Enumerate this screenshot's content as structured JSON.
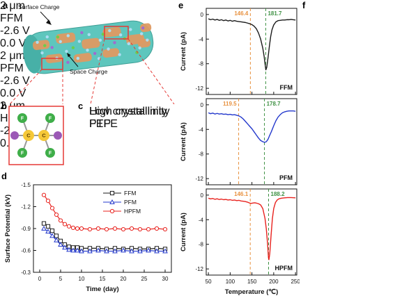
{
  "panels": {
    "a": {
      "label": "a",
      "surface_charge": "Surface Charge",
      "space_charge": "Space Charge"
    },
    "b": {
      "label": "b",
      "c_label": "C",
      "f_label": "F"
    },
    "c": {
      "label": "c",
      "top_text": "Low crystallinity FEP",
      "bottom_text": "High crystallinity PTFE"
    },
    "d": {
      "label": "d"
    },
    "e": {
      "label": "e"
    },
    "f": {
      "label": "f",
      "images": [
        {
          "name": "FFM",
          "scale": "2 μm",
          "cbar_top": "-2.6 V",
          "cbar_bottom": "0.0 V"
        },
        {
          "name": "PFM",
          "scale": "2 μm",
          "cbar_top": "-2.6 V",
          "cbar_bottom": "0.0 V"
        },
        {
          "name": "HPFM",
          "scale": "2 μm",
          "cbar_top": "-2.6 V",
          "cbar_bottom": "0.0 V"
        }
      ]
    }
  },
  "chart_data": [
    {
      "type": "line",
      "panel": "d",
      "xlabel": "Time (day)",
      "ylabel": "Surface Potential (kV)",
      "xlim": [
        -1.5,
        31.5
      ],
      "ylim_top_to_bottom": [
        -1.5,
        -0.3
      ],
      "xticks": [
        0,
        5,
        10,
        15,
        20,
        25,
        30
      ],
      "yticks": [
        -1.5,
        -1.2,
        -0.9,
        -0.6,
        -0.3
      ],
      "legend_position": "top-right",
      "grid": false,
      "series": [
        {
          "name": "FFM",
          "color": "#1a1a1a",
          "marker": "square",
          "points": [
            [
              1,
              -0.97
            ],
            [
              2,
              -0.93
            ],
            [
              3,
              -0.87
            ],
            [
              4,
              -0.8
            ],
            [
              5,
              -0.73
            ],
            [
              6,
              -0.68
            ],
            [
              7,
              -0.65
            ],
            [
              8,
              -0.64
            ],
            [
              9,
              -0.64
            ],
            [
              10,
              -0.63
            ],
            [
              12,
              -0.63
            ],
            [
              14,
              -0.63
            ],
            [
              16,
              -0.62
            ],
            [
              18,
              -0.63
            ],
            [
              20,
              -0.62
            ],
            [
              22,
              -0.63
            ],
            [
              24,
              -0.62
            ],
            [
              26,
              -0.62
            ],
            [
              28,
              -0.63
            ],
            [
              30,
              -0.62
            ]
          ]
        },
        {
          "name": "PFM",
          "color": "#2338cc",
          "marker": "triangle",
          "points": [
            [
              1,
              -0.9
            ],
            [
              2,
              -0.86
            ],
            [
              3,
              -0.8
            ],
            [
              4,
              -0.74
            ],
            [
              5,
              -0.68
            ],
            [
              6,
              -0.64
            ],
            [
              7,
              -0.61
            ],
            [
              8,
              -0.6
            ],
            [
              9,
              -0.6
            ],
            [
              10,
              -0.59
            ],
            [
              12,
              -0.59
            ],
            [
              14,
              -0.6
            ],
            [
              16,
              -0.59
            ],
            [
              18,
              -0.59
            ],
            [
              20,
              -0.6
            ],
            [
              22,
              -0.59
            ],
            [
              24,
              -0.59
            ],
            [
              26,
              -0.6
            ],
            [
              28,
              -0.59
            ],
            [
              30,
              -0.59
            ]
          ]
        },
        {
          "name": "HPFM",
          "color": "#e8211d",
          "marker": "circle",
          "points": [
            [
              1,
              -1.36
            ],
            [
              2,
              -1.28
            ],
            [
              3,
              -1.18
            ],
            [
              4,
              -1.09
            ],
            [
              5,
              -1.01
            ],
            [
              6,
              -0.96
            ],
            [
              7,
              -0.93
            ],
            [
              8,
              -0.91
            ],
            [
              9,
              -0.9
            ],
            [
              10,
              -0.9
            ],
            [
              12,
              -0.89
            ],
            [
              14,
              -0.9
            ],
            [
              16,
              -0.89
            ],
            [
              18,
              -0.9
            ],
            [
              20,
              -0.89
            ],
            [
              22,
              -0.9
            ],
            [
              24,
              -0.89
            ],
            [
              26,
              -0.89
            ],
            [
              28,
              -0.9
            ],
            [
              30,
              -0.89
            ]
          ]
        }
      ]
    },
    {
      "type": "line",
      "panel": "e-top",
      "sample": "FFM",
      "color": "#1a1a1a",
      "xlabel": "",
      "ylabel": "Current (pA)",
      "xlim": [
        45,
        253
      ],
      "ylim": [
        0,
        -12
      ],
      "xticks": [
        50,
        100,
        150,
        200,
        250
      ],
      "yticks": [
        0,
        -4,
        -8,
        -12
      ],
      "vlines": [
        {
          "x": 146.4,
          "label": "146.4",
          "color": "#E8913F"
        },
        {
          "x": 181.7,
          "label": "181.7",
          "color": "#3F9144"
        }
      ],
      "points": [
        [
          50,
          -0.7
        ],
        [
          55,
          -0.85
        ],
        [
          60,
          -0.75
        ],
        [
          65,
          -0.9
        ],
        [
          70,
          -0.8
        ],
        [
          75,
          -0.95
        ],
        [
          80,
          -0.85
        ],
        [
          85,
          -1.0
        ],
        [
          90,
          -0.9
        ],
        [
          95,
          -1.05
        ],
        [
          100,
          -0.95
        ],
        [
          105,
          -1.1
        ],
        [
          110,
          -1.0
        ],
        [
          115,
          -1.1
        ],
        [
          120,
          -1.15
        ],
        [
          125,
          -1.2
        ],
        [
          130,
          -1.25
        ],
        [
          135,
          -1.3
        ],
        [
          140,
          -1.4
        ],
        [
          145,
          -1.5
        ],
        [
          150,
          -1.65
        ],
        [
          155,
          -1.9
        ],
        [
          160,
          -2.3
        ],
        [
          165,
          -3.0
        ],
        [
          170,
          -4.0
        ],
        [
          175,
          -5.5
        ],
        [
          178,
          -6.8
        ],
        [
          180,
          -8.0
        ],
        [
          182,
          -9.0
        ],
        [
          184,
          -8.6
        ],
        [
          187,
          -7.0
        ],
        [
          190,
          -5.2
        ],
        [
          193,
          -3.6
        ],
        [
          196,
          -2.5
        ],
        [
          200,
          -1.7
        ],
        [
          205,
          -1.2
        ],
        [
          210,
          -1.0
        ],
        [
          215,
          -0.95
        ],
        [
          220,
          -0.9
        ],
        [
          225,
          -0.9
        ],
        [
          230,
          -0.85
        ],
        [
          235,
          -0.85
        ],
        [
          240,
          -0.8
        ],
        [
          245,
          -0.85
        ],
        [
          250,
          -0.9
        ]
      ]
    },
    {
      "type": "line",
      "panel": "e-middle",
      "sample": "PFM",
      "color": "#2338cc",
      "xlabel": "",
      "ylabel": "Current (pA)",
      "xlim": [
        45,
        253
      ],
      "ylim": [
        0,
        -12
      ],
      "xticks": [
        50,
        100,
        150,
        200,
        250
      ],
      "yticks": [
        0,
        -4,
        -8,
        -12
      ],
      "vlines": [
        {
          "x": 119.5,
          "label": "119.5",
          "color": "#E8913F"
        },
        {
          "x": 178.7,
          "label": "178.7",
          "color": "#3F9144"
        }
      ],
      "points": [
        [
          50,
          -1.3
        ],
        [
          55,
          -1.45
        ],
        [
          60,
          -1.35
        ],
        [
          65,
          -1.5
        ],
        [
          70,
          -1.4
        ],
        [
          75,
          -1.5
        ],
        [
          80,
          -1.45
        ],
        [
          85,
          -1.55
        ],
        [
          90,
          -1.5
        ],
        [
          95,
          -1.6
        ],
        [
          100,
          -1.55
        ],
        [
          105,
          -1.65
        ],
        [
          110,
          -1.6
        ],
        [
          115,
          -1.7
        ],
        [
          120,
          -1.8
        ],
        [
          125,
          -2.0
        ],
        [
          130,
          -2.3
        ],
        [
          135,
          -2.7
        ],
        [
          140,
          -3.1
        ],
        [
          145,
          -3.5
        ],
        [
          150,
          -3.9
        ],
        [
          155,
          -4.4
        ],
        [
          160,
          -4.9
        ],
        [
          165,
          -5.4
        ],
        [
          170,
          -5.8
        ],
        [
          175,
          -6.0
        ],
        [
          179,
          -6.1
        ],
        [
          183,
          -6.0
        ],
        [
          187,
          -5.6
        ],
        [
          190,
          -5.1
        ],
        [
          195,
          -4.3
        ],
        [
          200,
          -3.4
        ],
        [
          205,
          -2.6
        ],
        [
          210,
          -2.0
        ],
        [
          215,
          -1.6
        ],
        [
          220,
          -1.3
        ],
        [
          225,
          -1.15
        ],
        [
          230,
          -1.05
        ],
        [
          235,
          -1.0
        ],
        [
          240,
          -1.0
        ],
        [
          245,
          -1.0
        ],
        [
          250,
          -1.05
        ]
      ]
    },
    {
      "type": "line",
      "panel": "e-bottom",
      "sample": "HPFM",
      "color": "#e8211d",
      "xlabel": "Temperature (℃)",
      "ylabel": "Current (pA)",
      "xlim": [
        45,
        253
      ],
      "ylim": [
        0,
        -12
      ],
      "xticks": [
        50,
        100,
        150,
        200,
        250
      ],
      "yticks": [
        0,
        -4,
        -8,
        -12
      ],
      "vlines": [
        {
          "x": 146.1,
          "label": "146.1",
          "color": "#E8913F"
        },
        {
          "x": 188.2,
          "label": "188.2",
          "color": "#3F9144"
        }
      ],
      "points": [
        [
          50,
          -0.5
        ],
        [
          55,
          -0.62
        ],
        [
          60,
          -0.55
        ],
        [
          65,
          -0.68
        ],
        [
          70,
          -0.6
        ],
        [
          75,
          -0.72
        ],
        [
          80,
          -0.65
        ],
        [
          85,
          -0.75
        ],
        [
          90,
          -0.7
        ],
        [
          95,
          -0.8
        ],
        [
          100,
          -0.75
        ],
        [
          105,
          -0.85
        ],
        [
          110,
          -0.8
        ],
        [
          115,
          -0.9
        ],
        [
          120,
          -0.85
        ],
        [
          125,
          -0.95
        ],
        [
          130,
          -1.0
        ],
        [
          135,
          -1.05
        ],
        [
          140,
          -1.15
        ],
        [
          145,
          -1.3
        ],
        [
          148,
          -1.35
        ],
        [
          152,
          -1.3
        ],
        [
          156,
          -1.25
        ],
        [
          160,
          -1.3
        ],
        [
          165,
          -1.4
        ],
        [
          170,
          -1.6
        ],
        [
          175,
          -2.2
        ],
        [
          180,
          -3.8
        ],
        [
          183,
          -5.5
        ],
        [
          186,
          -8.0
        ],
        [
          188,
          -10.2
        ],
        [
          189,
          -10.5
        ],
        [
          191,
          -9.5
        ],
        [
          194,
          -6.5
        ],
        [
          197,
          -3.8
        ],
        [
          200,
          -2.2
        ],
        [
          204,
          -1.2
        ],
        [
          208,
          -0.8
        ],
        [
          212,
          -0.6
        ],
        [
          218,
          -0.5
        ],
        [
          225,
          -0.45
        ],
        [
          232,
          -0.4
        ],
        [
          240,
          -0.4
        ],
        [
          250,
          -0.45
        ]
      ]
    }
  ],
  "colors": {
    "vline_orange": "#E8913F",
    "vline_green": "#3F9144",
    "ffm": "#1a1a1a",
    "pfm": "#2338cc",
    "hpfm": "#e8211d",
    "fiber_body": "#5EC6BD",
    "fiber_patch": "#DE9A62",
    "highlight_red": "#E53935"
  }
}
